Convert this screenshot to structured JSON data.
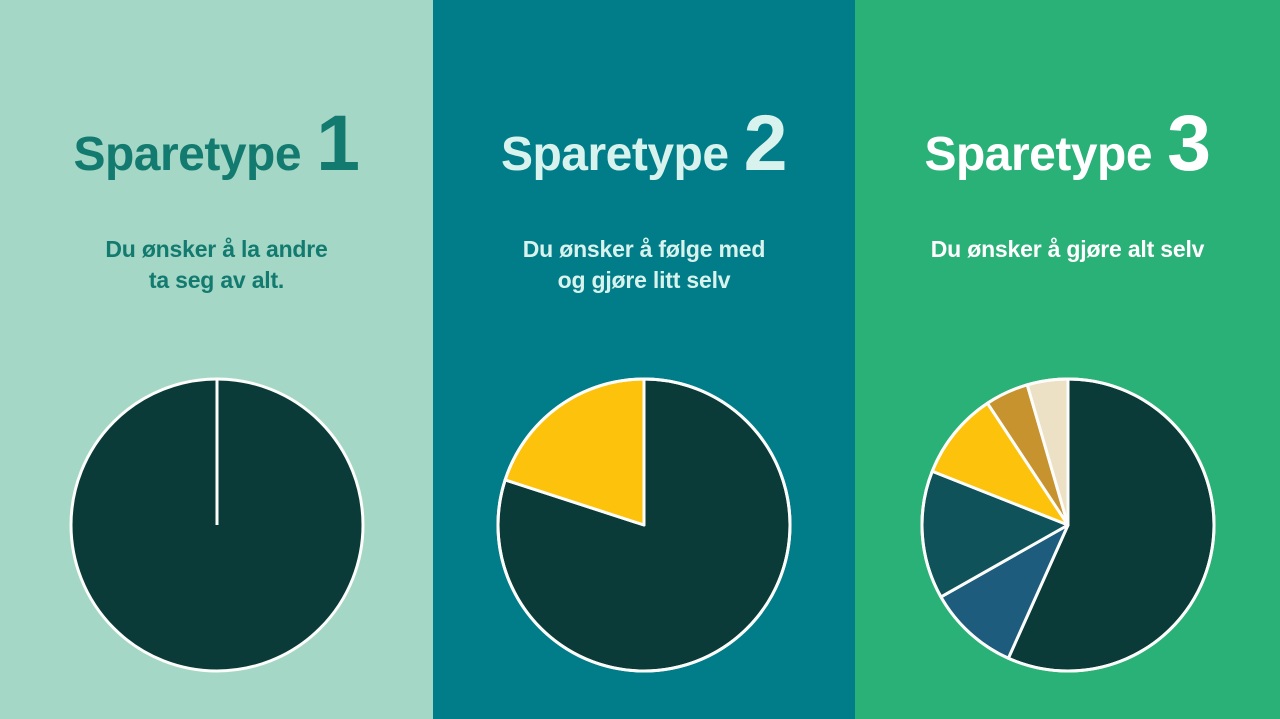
{
  "panels": [
    {
      "title": "Sparetype",
      "number": "1",
      "subtitle": "Du ønsker å la andre\nta seg av alt.",
      "background": "#a4d7c5",
      "text_color": "#137a70"
    },
    {
      "title": "Sparetype",
      "number": "2",
      "subtitle": "Du ønsker å følge med\nog gjøre litt selv",
      "background": "#007d89",
      "text_color": "#d8f3ed"
    },
    {
      "title": "Sparetype",
      "number": "3",
      "subtitle": "Du ønsker å gjøre alt selv",
      "background": "#2ab177",
      "text_color": "#ffffff"
    }
  ],
  "colors": {
    "pie_stroke": "#fcfdfa",
    "dark_green": "#0b3b38",
    "steel_blue": "#1d5c7c",
    "mid_teal": "#0f525a",
    "yellow": "#fdc20c",
    "gold": "#c6932e",
    "cream": "#ece0c5"
  },
  "chart_data": [
    {
      "type": "pie",
      "title": "Sparetype 1",
      "start_angle_deg": 0,
      "direction": "clockwise",
      "legend": false,
      "seam_at_top": true,
      "slices": [
        {
          "label": "dark-green",
          "value": 100,
          "color": "#0b3b38"
        }
      ]
    },
    {
      "type": "pie",
      "title": "Sparetype 2",
      "start_angle_deg": 0,
      "direction": "clockwise",
      "legend": false,
      "slices": [
        {
          "label": "dark-green",
          "value": 80,
          "color": "#0b3b38"
        },
        {
          "label": "yellow",
          "value": 20,
          "color": "#fdc20c"
        }
      ]
    },
    {
      "type": "pie",
      "title": "Sparetype 3",
      "start_angle_deg": 0,
      "direction": "clockwise",
      "legend": false,
      "slices": [
        {
          "label": "dark-green",
          "value": 56.7,
          "color": "#0b3b38"
        },
        {
          "label": "steel-blue",
          "value": 10.1,
          "color": "#1d5c7c"
        },
        {
          "label": "mid-teal",
          "value": 14.2,
          "color": "#0f525a"
        },
        {
          "label": "yellow",
          "value": 9.7,
          "color": "#fdc20c"
        },
        {
          "label": "gold",
          "value": 4.8,
          "color": "#c6932e"
        },
        {
          "label": "cream",
          "value": 4.5,
          "color": "#ece0c5"
        }
      ]
    }
  ]
}
